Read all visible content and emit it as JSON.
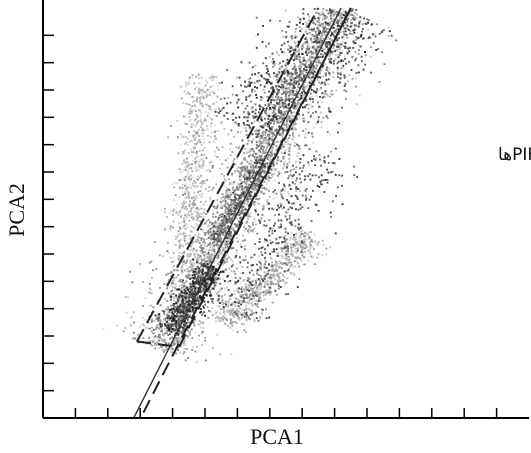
{
  "chart_data": {
    "type": "scatter",
    "title": "",
    "xlabel": "PCA1",
    "ylabel": "PCA2",
    "annotation": "محدوده انتخاب PIFها",
    "xlim": [
      0,
      15
    ],
    "ylim": [
      0,
      15
    ],
    "x_ticks": [
      1,
      2,
      3,
      4,
      5,
      6,
      7,
      8,
      9,
      10,
      11,
      12,
      13,
      14
    ],
    "y_ticks": [
      1,
      2,
      3,
      4,
      5,
      6,
      7,
      8,
      9,
      10,
      11,
      12,
      13,
      14
    ],
    "tick_labels_shown": false,
    "grid": false,
    "density_colormap": "grayscale (light gray = low density, black = high density)",
    "regression_line": {
      "x1": 2.8,
      "y1": 0.0,
      "x2": 9.2,
      "y2": 15.0
    },
    "selection_band_center": {
      "x1": 3.1,
      "y1": 0.2,
      "x2": 9.5,
      "y2": 15.0
    },
    "selection_band_boundaries": [
      {
        "x1": 2.9,
        "y1": 2.8,
        "x2": 8.5,
        "y2": 15.0
      },
      {
        "x1": 4.2,
        "y1": 2.6,
        "x2": 9.5,
        "y2": 15.0
      }
    ],
    "density_regions": [
      {
        "name": "main-band-core",
        "x1": 3.7,
        "y1": 2.6,
        "x2": 9.0,
        "y2": 15.0,
        "halfwidth": 0.55,
        "n": 1500,
        "shade": [
          95,
          190
        ]
      },
      {
        "name": "main-band-spread",
        "x1": 3.5,
        "y1": 2.5,
        "x2": 9.3,
        "y2": 15.0,
        "halfwidth": 1.25,
        "n": 1700,
        "shade": [
          130,
          225
        ]
      },
      {
        "name": "upper-left-arm",
        "x1": 4.4,
        "y1": 5.5,
        "x2": 4.9,
        "y2": 12.6,
        "halfwidth": 0.55,
        "n": 650,
        "shade": [
          150,
          235
        ]
      },
      {
        "name": "lower-right-arm",
        "x1": 5.5,
        "y1": 3.5,
        "x2": 8.3,
        "y2": 6.8,
        "halfwidth": 0.5,
        "n": 650,
        "shade": [
          140,
          225
        ]
      },
      {
        "name": "dense-cluster",
        "x1": 3.9,
        "y1": 3.2,
        "x2": 5.2,
        "y2": 5.6,
        "halfwidth": 0.45,
        "n": 500,
        "shade": [
          20,
          110
        ]
      },
      {
        "name": "mid-band-dark",
        "x1": 5.3,
        "y1": 6.5,
        "x2": 6.8,
        "y2": 9.5,
        "halfwidth": 0.3,
        "n": 300,
        "shade": [
          60,
          140
        ]
      },
      {
        "name": "upper-outliers",
        "x1": 6.3,
        "y1": 10.5,
        "x2": 9.6,
        "y2": 15.0,
        "halfwidth": 1.35,
        "n": 650,
        "shade": [
          40,
          120
        ]
      },
      {
        "name": "right-edge-outliers",
        "x1": 5.9,
        "y1": 3.8,
        "x2": 8.6,
        "y2": 9.8,
        "halfwidth": 0.95,
        "n": 350,
        "shade": [
          50,
          130
        ]
      }
    ]
  }
}
